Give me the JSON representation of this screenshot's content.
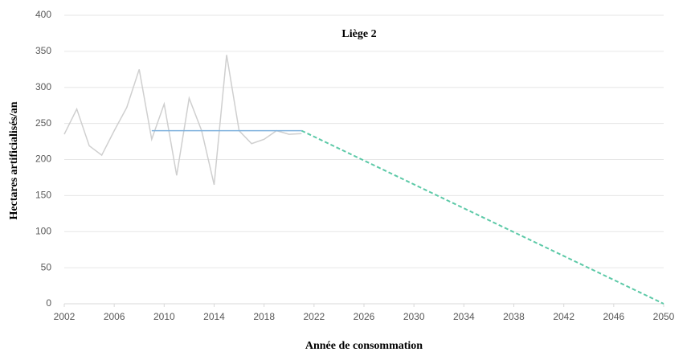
{
  "chart_data": {
    "type": "line",
    "title": "Liège 2",
    "x_label": "Année de consommation",
    "y_label": "Hectares artificialisés/an",
    "series": [
      {
        "color": "#cfcfcf",
        "style": "solid",
        "x": [
          2002,
          2003,
          2004,
          2005,
          2006,
          2007,
          2008,
          2009,
          2010,
          2011,
          2012,
          2013,
          2014,
          2015,
          2016,
          2017,
          2018,
          2019,
          2020,
          2021
        ],
        "values": [
          235,
          270,
          219,
          206,
          240,
          272,
          325,
          228,
          277,
          178,
          285,
          240,
          165,
          345,
          240,
          222,
          228,
          240,
          235,
          236
        ]
      },
      {
        "color": "#7fb2de",
        "style": "solid",
        "x": [
          2009,
          2021
        ],
        "values": [
          240,
          240
        ]
      },
      {
        "color": "#5cc9a7",
        "style": "dashed",
        "x": [
          2021,
          2050
        ],
        "values": [
          240,
          0
        ]
      }
    ],
    "xlim": [
      2002,
      2050
    ],
    "xticks": [
      2002,
      2006,
      2010,
      2014,
      2018,
      2022,
      2026,
      2030,
      2034,
      2038,
      2042,
      2046,
      2050
    ],
    "ylim": [
      0,
      400
    ],
    "yticks": [
      0,
      50,
      100,
      150,
      200,
      250,
      300,
      350,
      400
    ],
    "grid": true
  }
}
